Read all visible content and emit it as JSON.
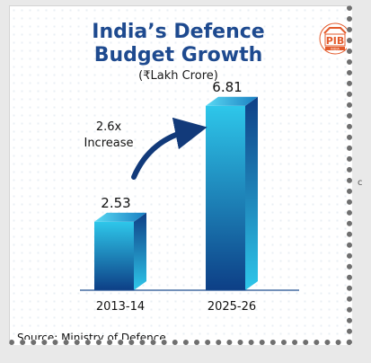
{
  "header": {
    "title_line1": "India’s Defence",
    "title_line2": "Budget Growth",
    "unit": "(₹Lakh Crore)"
  },
  "logo": {
    "icon": "pib-logo-icon",
    "text": "PIB",
    "subtext": "INDIA"
  },
  "annotation": {
    "line1": "2.6x",
    "line2": "Increase"
  },
  "source": "Source: Ministry of Defence",
  "colors": {
    "title": "#1e4a8f",
    "bar_light": "#2ec7ea",
    "bar_dark": "#0d3f86",
    "arrow": "#123a7a",
    "axis": "#1d4d8f"
  },
  "chart_data": {
    "type": "bar",
    "title": "India’s Defence Budget Growth",
    "ylabel": "₹Lakh Crore",
    "categories": [
      "2013-14",
      "2025-26"
    ],
    "values": [
      2.53,
      6.81
    ],
    "value_labels": [
      "2.53",
      "6.81"
    ],
    "ylim": [
      0,
      7.5
    ],
    "grid": false,
    "annotation": "2.6x Increase"
  }
}
